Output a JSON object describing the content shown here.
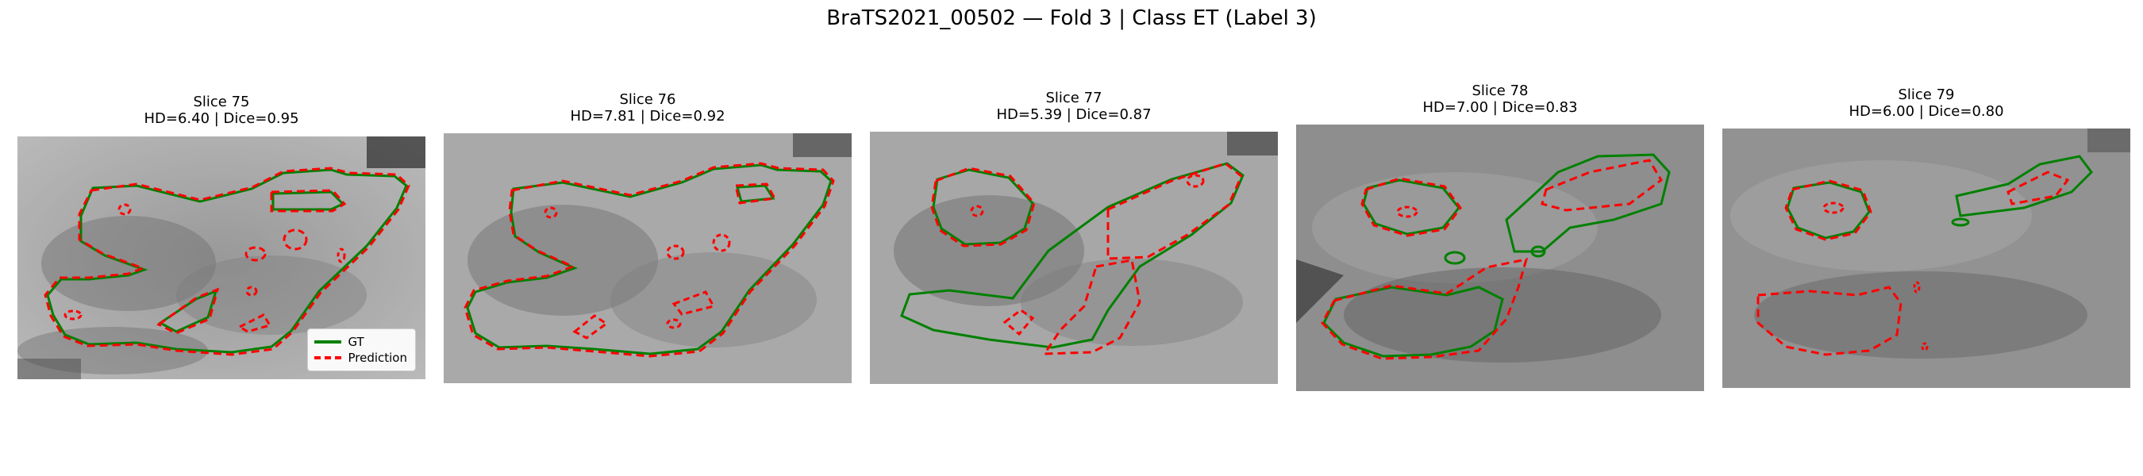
{
  "figure": {
    "title": "BraTS2021_00502 — Fold 3 | Class ET (Label 3)"
  },
  "colors": {
    "ground_truth": "#008000",
    "prediction": "#ff0000"
  },
  "legend": {
    "gt_label": "GT",
    "pred_label": "Prediction"
  },
  "panels": [
    {
      "slice": "Slice 75",
      "metrics": "HD=6.40 | Dice=0.95"
    },
    {
      "slice": "Slice 76",
      "metrics": "HD=7.81 | Dice=0.92"
    },
    {
      "slice": "Slice 77",
      "metrics": "HD=5.39 | Dice=0.87"
    },
    {
      "slice": "Slice 78",
      "metrics": "HD=7.00 | Dice=0.83"
    },
    {
      "slice": "Slice 79",
      "metrics": "HD=6.00 | Dice=0.80"
    }
  ]
}
